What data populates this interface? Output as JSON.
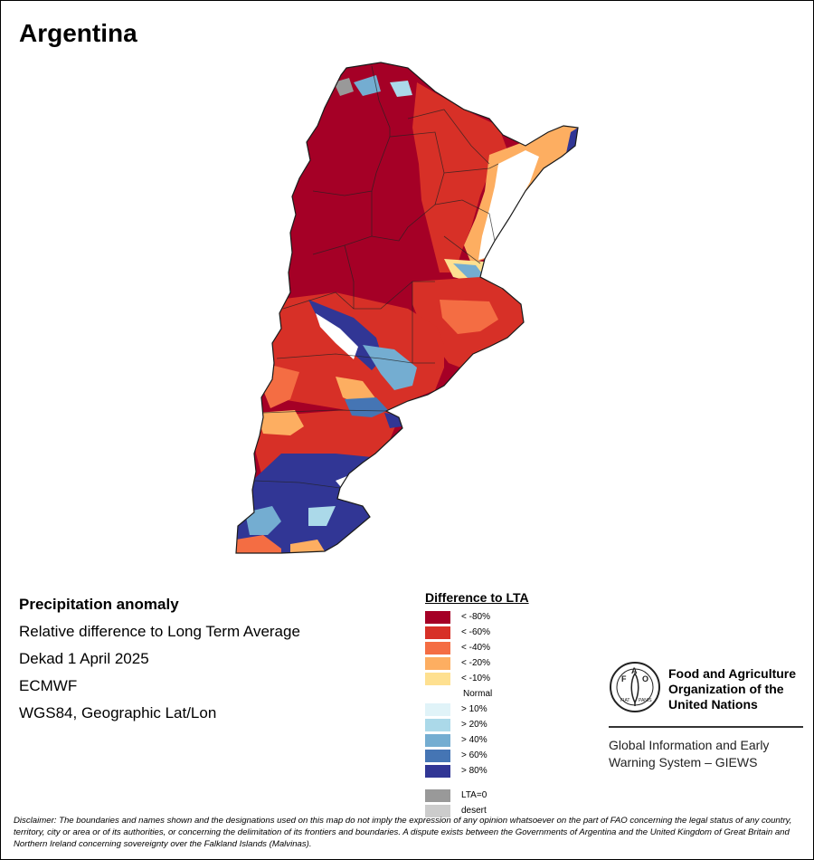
{
  "title": "Argentina",
  "info": {
    "heading": "Precipitation anomaly",
    "subtitle": "Relative difference to Long Term Average",
    "period": "Dekad 1 April 2025",
    "source": "ECMWF",
    "projection": "WGS84, Geographic Lat/Lon"
  },
  "legend": {
    "title": "Difference to LTA",
    "items": [
      {
        "label": "< -80%",
        "color": "#a50026"
      },
      {
        "label": "< -60%",
        "color": "#d73027"
      },
      {
        "label": "< -40%",
        "color": "#f46d43"
      },
      {
        "label": "< -20%",
        "color": "#fdae61"
      },
      {
        "label": "< -10%",
        "color": "#fee090"
      },
      {
        "label": "Normal",
        "color": "#ffffff"
      },
      {
        "label": "> 10%",
        "color": "#e0f3f8"
      },
      {
        "label": "> 20%",
        "color": "#abd9e9"
      },
      {
        "label": "> 40%",
        "color": "#74add1"
      },
      {
        "label": "> 60%",
        "color": "#4575b4"
      },
      {
        "label": "> 80%",
        "color": "#313695"
      },
      {
        "label": "LTA=0",
        "color": "#999999"
      },
      {
        "label": "desert",
        "color": "#cccccc"
      }
    ]
  },
  "logo": {
    "org_name": "Food and Agriculture Organization of the United Nations",
    "emblem_letters": "FAO",
    "emblem_motto": "FIAT PANIS",
    "program": "Global Information and Early Warning System – GIEWS"
  },
  "disclaimer": "Disclaimer: The boundaries and names shown and the designations used on this map do not imply the expression of any opinion whatsoever on the part of FAO concerning the legal status of any country, territory, city or area or of its authorities, or concerning the delimitation of its frontiers and boundaries. A dispute exists between the Governments of Argentina and the United Kingdom of Great Britain and Northern Ireland concerning sovereignty over the Falkland Islands (Malvinas)."
}
